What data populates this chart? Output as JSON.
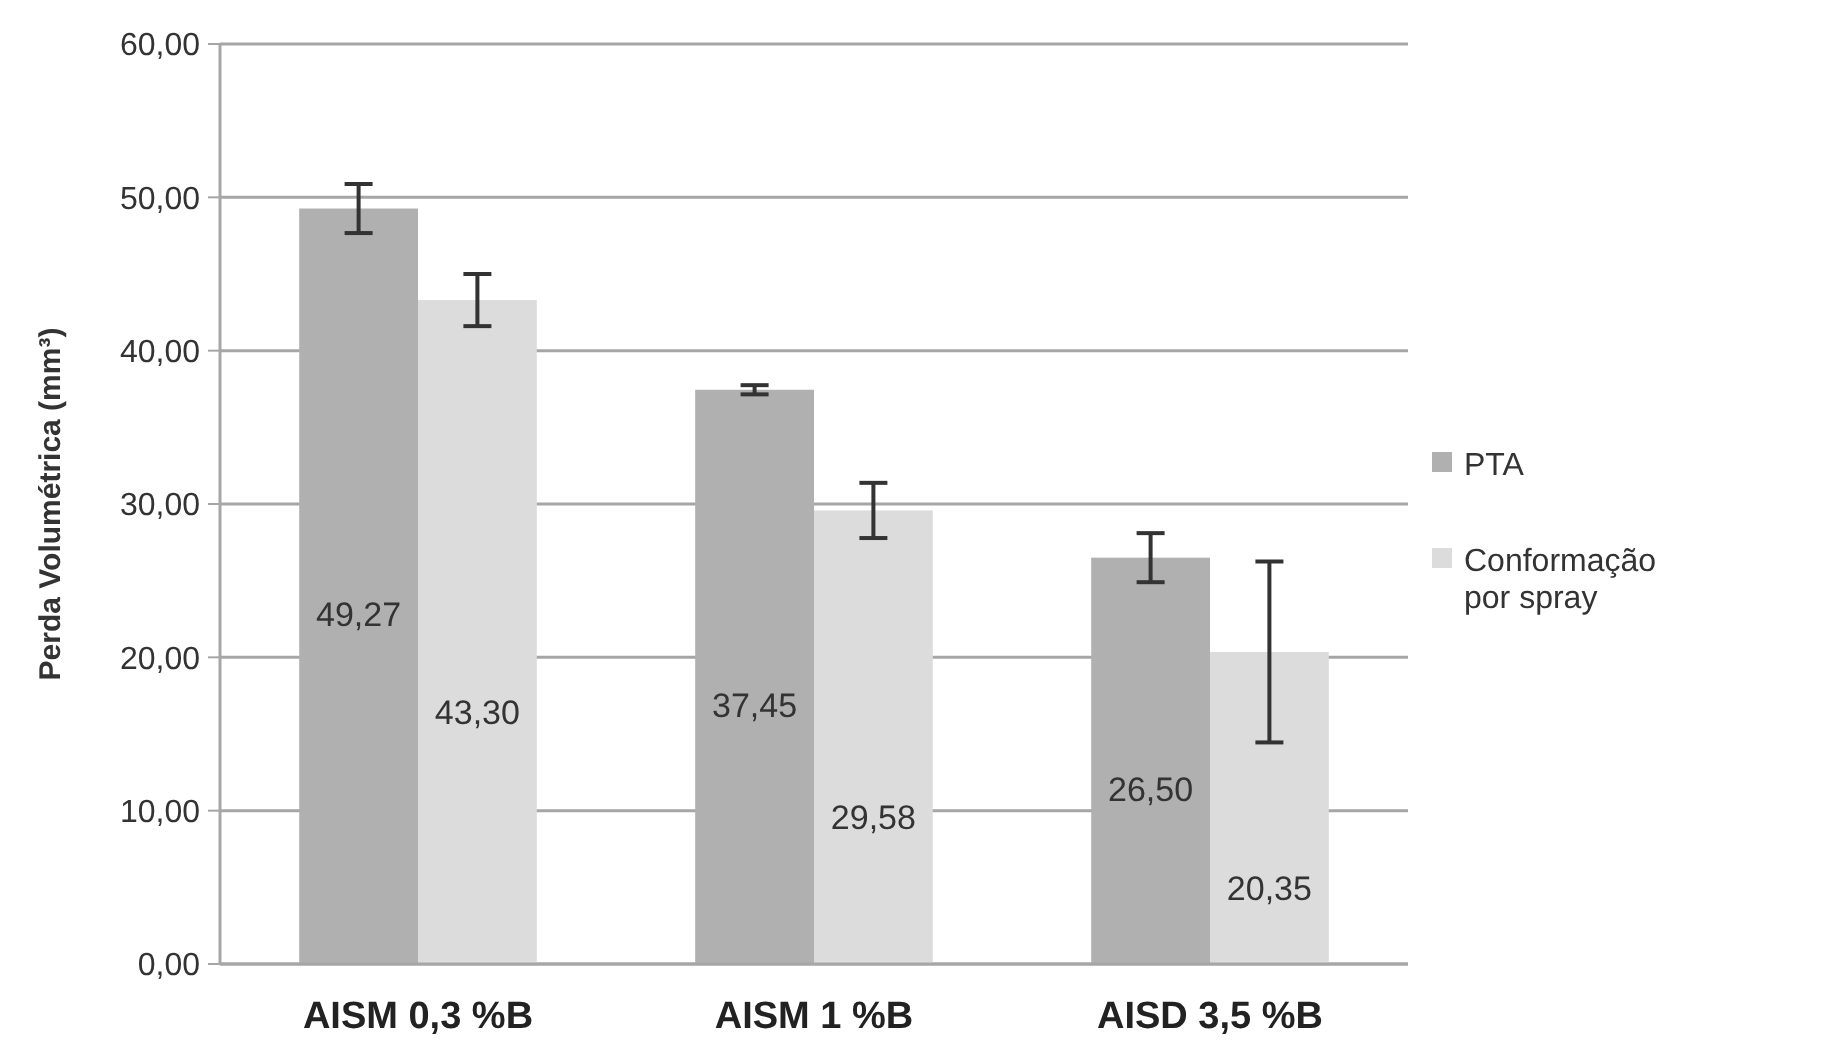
{
  "chart_data": {
    "type": "bar",
    "ylabel": "Perda Volumétrica (mm³)",
    "categories": [
      "AISM 0,3 %B",
      "AISM 1 %B",
      "AISD 3,5 %B"
    ],
    "series": [
      {
        "name": "PTA",
        "color": "#b0b0b0",
        "values": [
          49.27,
          37.45,
          26.5
        ],
        "errors": [
          1.6,
          0.3,
          1.6
        ],
        "value_labels": [
          "49,27",
          "37,45",
          "26,50"
        ]
      },
      {
        "name": "Conformação por spray",
        "color": "#dcdcdc",
        "values": [
          43.3,
          29.58,
          20.35
        ],
        "errors": [
          1.7,
          1.8,
          5.9
        ],
        "value_labels": [
          "43,30",
          "29,58",
          "20,35"
        ]
      }
    ],
    "ylim": [
      0,
      60
    ],
    "yticks": [
      {
        "value": 0,
        "label": "0,00"
      },
      {
        "value": 10,
        "label": "10,00"
      },
      {
        "value": 20,
        "label": "20,00"
      },
      {
        "value": 30,
        "label": "30,00"
      },
      {
        "value": 40,
        "label": "40,00"
      },
      {
        "value": 50,
        "label": "50,00"
      },
      {
        "value": 60,
        "label": "60,00"
      }
    ],
    "grid": "y",
    "legend": "right"
  }
}
